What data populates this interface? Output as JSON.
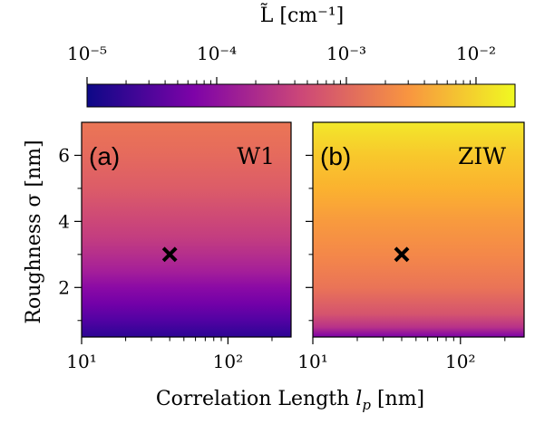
{
  "chart_data": [
    {
      "type": "colorbar",
      "label": "L̃ [cm⁻¹]",
      "scale": "log",
      "range": [
        1e-05,
        0.02
      ],
      "ticks": [
        {
          "value": 1e-05,
          "label": "10⁻⁵"
        },
        {
          "value": 0.0001,
          "label": "10⁻⁴"
        },
        {
          "value": 0.001,
          "label": "10⁻³"
        },
        {
          "value": 0.01,
          "label": "10⁻²"
        }
      ],
      "colormap": [
        "#0d0887",
        "#7e03a8",
        "#cc4778",
        "#f89540",
        "#f0f921"
      ]
    },
    {
      "type": "heatmap",
      "panel_label": "(a)",
      "material": "W1",
      "x_scale": "log",
      "xlim": [
        10,
        270
      ],
      "ylim": [
        0.5,
        7
      ],
      "x_ticks": [
        {
          "value": 10,
          "label": "10¹"
        },
        {
          "value": 100,
          "label": "10²"
        }
      ],
      "y_ticks": [
        {
          "value": 2,
          "label": "2"
        },
        {
          "value": 4,
          "label": "4"
        },
        {
          "value": 6,
          "label": "6"
        }
      ],
      "marker": {
        "x": 40,
        "y": 3,
        "symbol": "x"
      },
      "color_profile_by_roughness": [
        {
          "sigma": 0.5,
          "color": "#2c0594"
        },
        {
          "sigma": 1.0,
          "color": "#5102a3"
        },
        {
          "sigma": 1.5,
          "color": "#7201a8"
        },
        {
          "sigma": 2.0,
          "color": "#8b0aa5"
        },
        {
          "sigma": 2.5,
          "color": "#a51f99"
        },
        {
          "sigma": 3.0,
          "color": "#b52f8c"
        },
        {
          "sigma": 3.5,
          "color": "#c33d80"
        },
        {
          "sigma": 4.0,
          "color": "#cc4778"
        },
        {
          "sigma": 5.0,
          "color": "#dc5c68"
        },
        {
          "sigma": 6.0,
          "color": "#e56a5d"
        },
        {
          "sigma": 7.0,
          "color": "#eb7655"
        }
      ]
    },
    {
      "type": "heatmap",
      "panel_label": "(b)",
      "material": "ZIW",
      "x_scale": "log",
      "xlim": [
        10,
        270
      ],
      "ylim": [
        0.5,
        7
      ],
      "x_ticks": [
        {
          "value": 10,
          "label": "10¹"
        },
        {
          "value": 100,
          "label": "10²"
        }
      ],
      "y_ticks": [
        {
          "value": 2,
          "label": "2"
        },
        {
          "value": 4,
          "label": "4"
        },
        {
          "value": 6,
          "label": "6"
        }
      ],
      "marker": {
        "x": 40,
        "y": 3,
        "symbol": "x"
      },
      "color_profile_by_roughness": [
        {
          "sigma": 0.5,
          "color": "#7c02a8"
        },
        {
          "sigma": 0.8,
          "color": "#b83289"
        },
        {
          "sigma": 1.2,
          "color": "#d5546e"
        },
        {
          "sigma": 2.0,
          "color": "#ea7457"
        },
        {
          "sigma": 3.0,
          "color": "#f48849"
        },
        {
          "sigma": 4.0,
          "color": "#f89a3e"
        },
        {
          "sigma": 5.0,
          "color": "#fbb22f"
        },
        {
          "sigma": 6.0,
          "color": "#f8c82c"
        },
        {
          "sigma": 7.0,
          "color": "#f2e82a"
        }
      ]
    }
  ],
  "axes": {
    "xlabel_prefix": "Correlation Length ",
    "xlabel_symbol": "l",
    "xlabel_subscript": "p",
    "xlabel_unit": " [nm]",
    "ylabel": "Roughness σ [nm]"
  }
}
